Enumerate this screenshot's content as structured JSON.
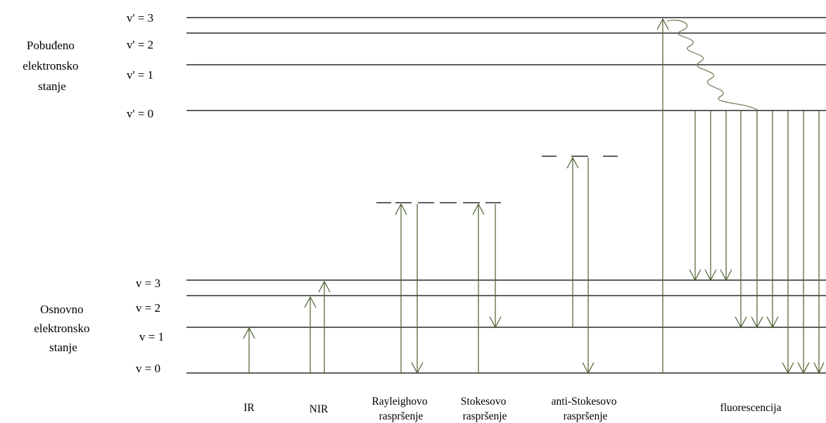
{
  "colors": {
    "arrow": "#4b5f2c",
    "level_line": "#000000",
    "wave": "#7b8062",
    "background": "#ffffff"
  },
  "state_labels": {
    "excited": [
      "Pobuđeno",
      "elektronsko",
      "stanje"
    ],
    "ground": [
      "Osnovno",
      "elektronsko",
      "stanje"
    ]
  },
  "excited_levels": [
    "v' = 3",
    "v' = 2",
    "v' = 1",
    "v' = 0"
  ],
  "ground_levels": [
    "v = 3",
    "v = 2",
    "v = 1",
    "v = 0"
  ],
  "process_labels": {
    "ir": [
      "IR"
    ],
    "nir": [
      "NIR"
    ],
    "rayleigh": [
      "Rayleighovo",
      "raspršenje"
    ],
    "stokes": [
      "Stokesovo",
      "raspršenje"
    ],
    "anti_stokes": [
      "anti-Stokesovo",
      "raspršenje"
    ],
    "fluorescence": [
      "fluorescencija"
    ]
  }
}
